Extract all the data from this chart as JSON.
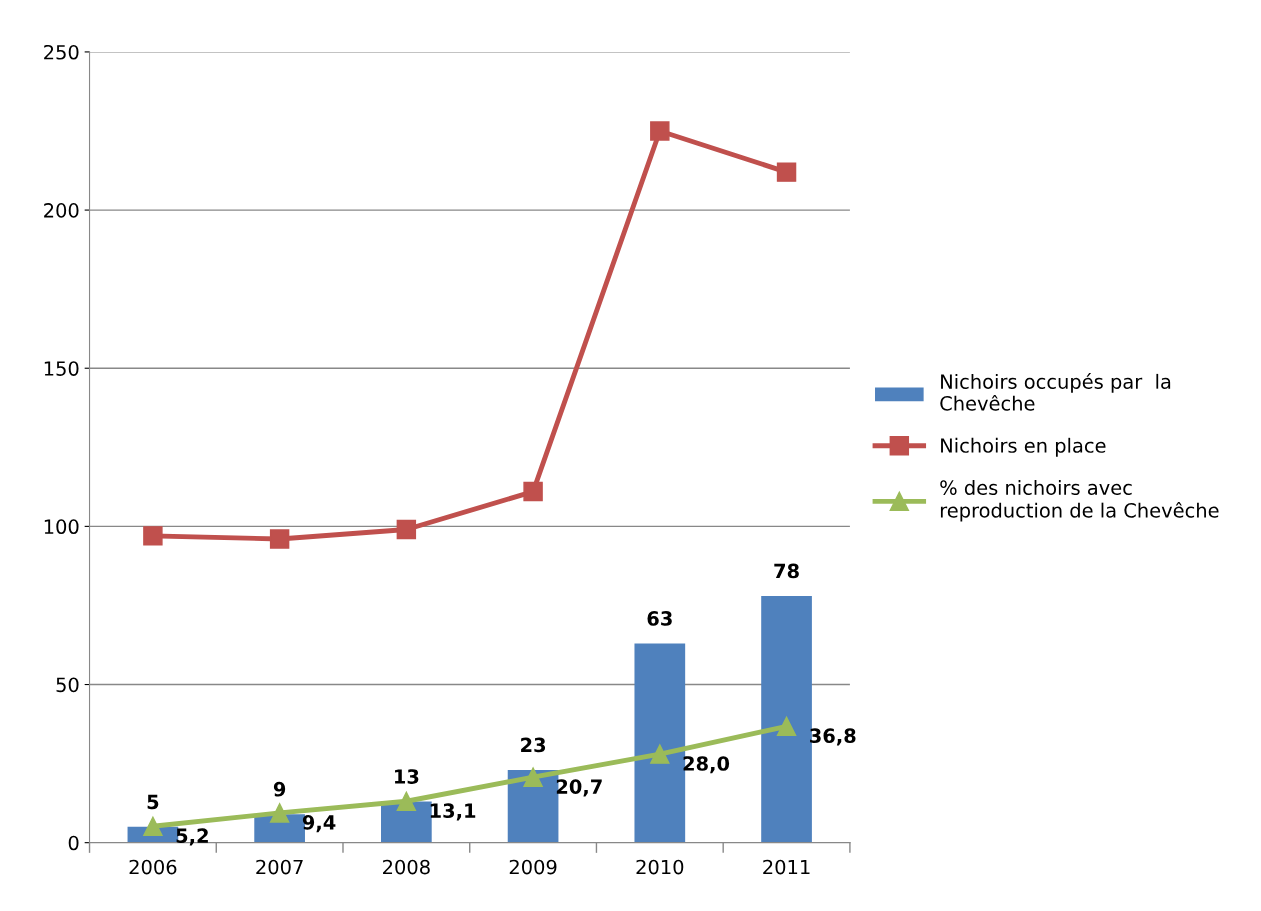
{
  "chart_data": {
    "type": "bar",
    "categories": [
      "2006",
      "2007",
      "2008",
      "2009",
      "2010",
      "2011"
    ],
    "series": [
      {
        "name": "Nichoirs occupés par  la\nChevêche",
        "color": "#4f81bd",
        "values": [
          5,
          9,
          13,
          23,
          63,
          78
        ],
        "value_labels": [
          "5",
          "9",
          "13",
          "23",
          "63",
          "78"
        ]
      },
      {
        "name": "Nichoirs en place",
        "type": "line",
        "color": "#c0504d",
        "marker": "square",
        "values": [
          97,
          96,
          99,
          111,
          225,
          212
        ]
      },
      {
        "name": "% des nichoirs avec\nreproduction de la Chevêche",
        "type": "line",
        "color": "#9bbb59",
        "marker": "triangle",
        "values": [
          5.2,
          9.4,
          13.1,
          20.7,
          28.0,
          36.8
        ],
        "value_labels": [
          "5,2",
          "9,4",
          "13,1",
          "20,7",
          "28,0",
          "36,8"
        ]
      }
    ],
    "ylim": [
      0,
      250
    ],
    "yticks": [
      0,
      50,
      100,
      150,
      200,
      250
    ],
    "grid": "y",
    "legend": "right"
  }
}
